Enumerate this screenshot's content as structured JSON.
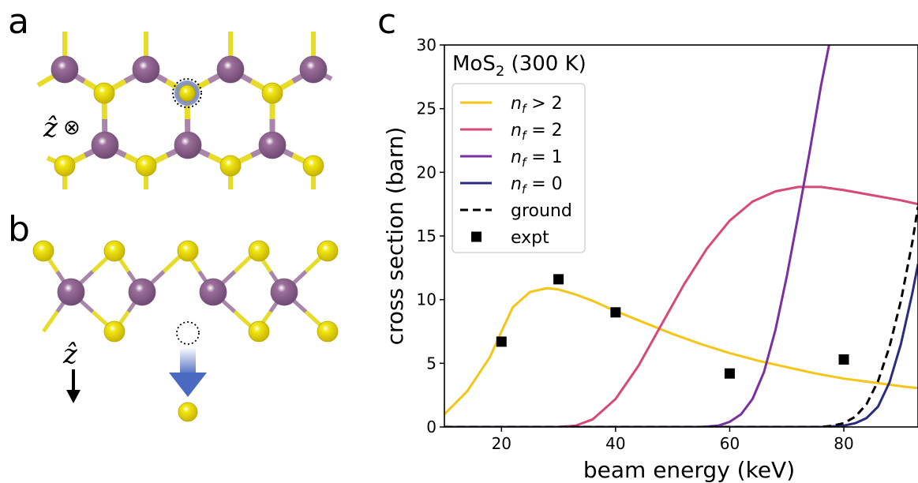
{
  "panels": {
    "a": "a",
    "b": "b",
    "c": "c"
  },
  "panel_a": {
    "axis_label": "ẑ",
    "axis_symbol": "⊗"
  },
  "panel_b": {
    "axis_label": "ẑ"
  },
  "colors": {
    "mo_atom": "#9b6f9b",
    "s_atom": "#f2e816",
    "bond_mo": "#a986a9",
    "bond_s": "#e8dc2a",
    "vacancy_arrow": "#4a69c0",
    "n_gt2": "#f5c518",
    "n_2": "#d6497a",
    "n_1": "#7b2fa0",
    "n_0": "#2b2b80",
    "ground": "#000000",
    "expt": "#000000"
  },
  "chart_data": {
    "type": "line",
    "annotation": {
      "text": "MoS",
      "sub": "2",
      "suffix": " (300 K)"
    },
    "xlabel": "beam energy (keV)",
    "ylabel": "cross section (barn)",
    "xlim": [
      10,
      93
    ],
    "ylim": [
      0,
      30
    ],
    "xticks": [
      20,
      40,
      60,
      80
    ],
    "yticks": [
      0,
      5,
      10,
      15,
      20,
      25,
      30
    ],
    "grid": false,
    "legend_position": "top-left",
    "series": [
      {
        "key": "n_gt2",
        "name": "n_f > 2",
        "label_italic": "n",
        "label_sub": "f",
        "label_rest": " > 2",
        "style": "solid",
        "x": [
          10,
          14,
          18,
          20,
          22,
          25,
          28,
          30,
          33,
          36,
          40,
          45,
          50,
          55,
          60,
          65,
          70,
          75,
          80,
          85,
          90,
          93
        ],
        "y": [
          1.0,
          2.8,
          5.5,
          7.5,
          9.4,
          10.6,
          10.9,
          10.8,
          10.4,
          9.9,
          9.1,
          8.2,
          7.3,
          6.5,
          5.8,
          5.2,
          4.7,
          4.2,
          3.8,
          3.5,
          3.2,
          3.05
        ]
      },
      {
        "key": "n_2",
        "name": "n_f = 2",
        "label_italic": "n",
        "label_sub": "f",
        "label_rest": " = 2",
        "style": "solid",
        "x": [
          10,
          30,
          33,
          36,
          40,
          44,
          48,
          52,
          56,
          60,
          64,
          68,
          72,
          76,
          80,
          85,
          90,
          93
        ],
        "y": [
          0,
          0,
          0.1,
          0.6,
          2.2,
          4.8,
          8.0,
          11.2,
          14.0,
          16.2,
          17.7,
          18.5,
          18.85,
          18.85,
          18.6,
          18.2,
          17.8,
          17.5
        ]
      },
      {
        "key": "n_1",
        "name": "n_f = 1",
        "label_italic": "n",
        "label_sub": "f",
        "label_rest": " = 1",
        "style": "solid",
        "x": [
          10,
          55,
          58,
          60,
          62,
          64,
          66,
          68,
          70,
          72,
          74,
          76,
          77.5
        ],
        "y": [
          0,
          0,
          0.1,
          0.4,
          1.0,
          2.2,
          4.3,
          7.6,
          11.8,
          16.6,
          21.6,
          26.8,
          30.2
        ]
      },
      {
        "key": "n_0",
        "name": "n_f = 0",
        "label_italic": "n",
        "label_sub": "f",
        "label_rest": " = 0",
        "style": "solid",
        "x": [
          10,
          76,
          80,
          82,
          84,
          86,
          88,
          90,
          92,
          93
        ],
        "y": [
          0,
          0,
          0.1,
          0.3,
          0.7,
          1.6,
          3.5,
          6.5,
          10.5,
          12.8
        ]
      },
      {
        "key": "ground",
        "name": "ground",
        "label_italic": "",
        "label_sub": "",
        "label_rest": "ground",
        "style": "dashed",
        "x": [
          10,
          76,
          78,
          80,
          82,
          84,
          86,
          88,
          90,
          92,
          93
        ],
        "y": [
          0,
          0,
          0.1,
          0.3,
          0.8,
          1.8,
          3.6,
          6.3,
          9.9,
          14.5,
          17.3
        ]
      }
    ],
    "expt": {
      "name": "expt",
      "x": [
        20,
        30,
        40,
        60,
        80
      ],
      "y": [
        6.7,
        11.6,
        9.0,
        4.2,
        5.3
      ]
    }
  }
}
